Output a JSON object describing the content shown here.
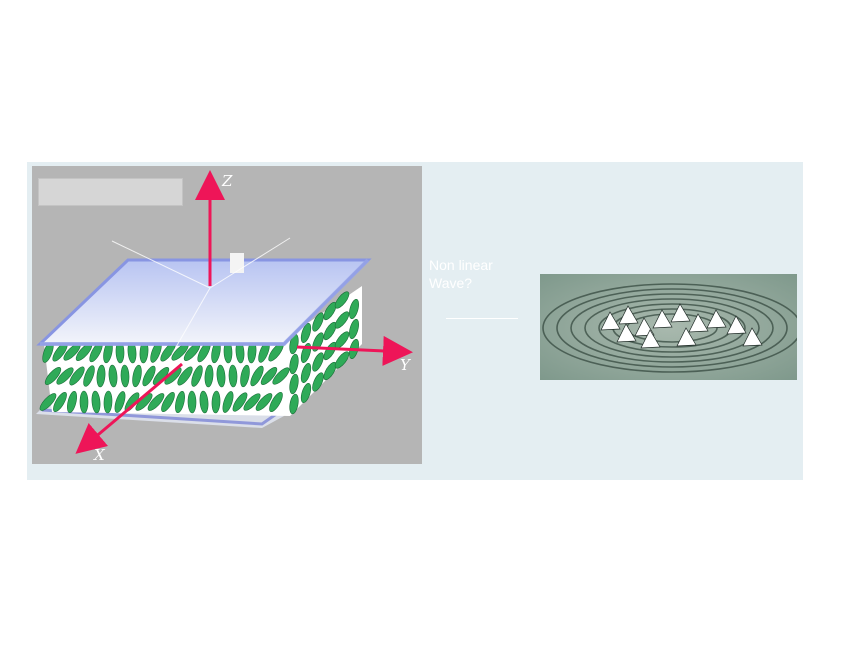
{
  "diagram": {
    "axes": {
      "z": "Z",
      "y": "Y",
      "x": "X"
    },
    "middle_label": {
      "line1": "Non linear",
      "line2": "Wave?"
    },
    "colors": {
      "axis_arrow": "#ee1558",
      "molecule": "#2faa58",
      "surface": "#e9eef8",
      "left_background": "#b5b5b5",
      "panel_background": "#e4eef2",
      "right_background": "#8fa799"
    }
  }
}
